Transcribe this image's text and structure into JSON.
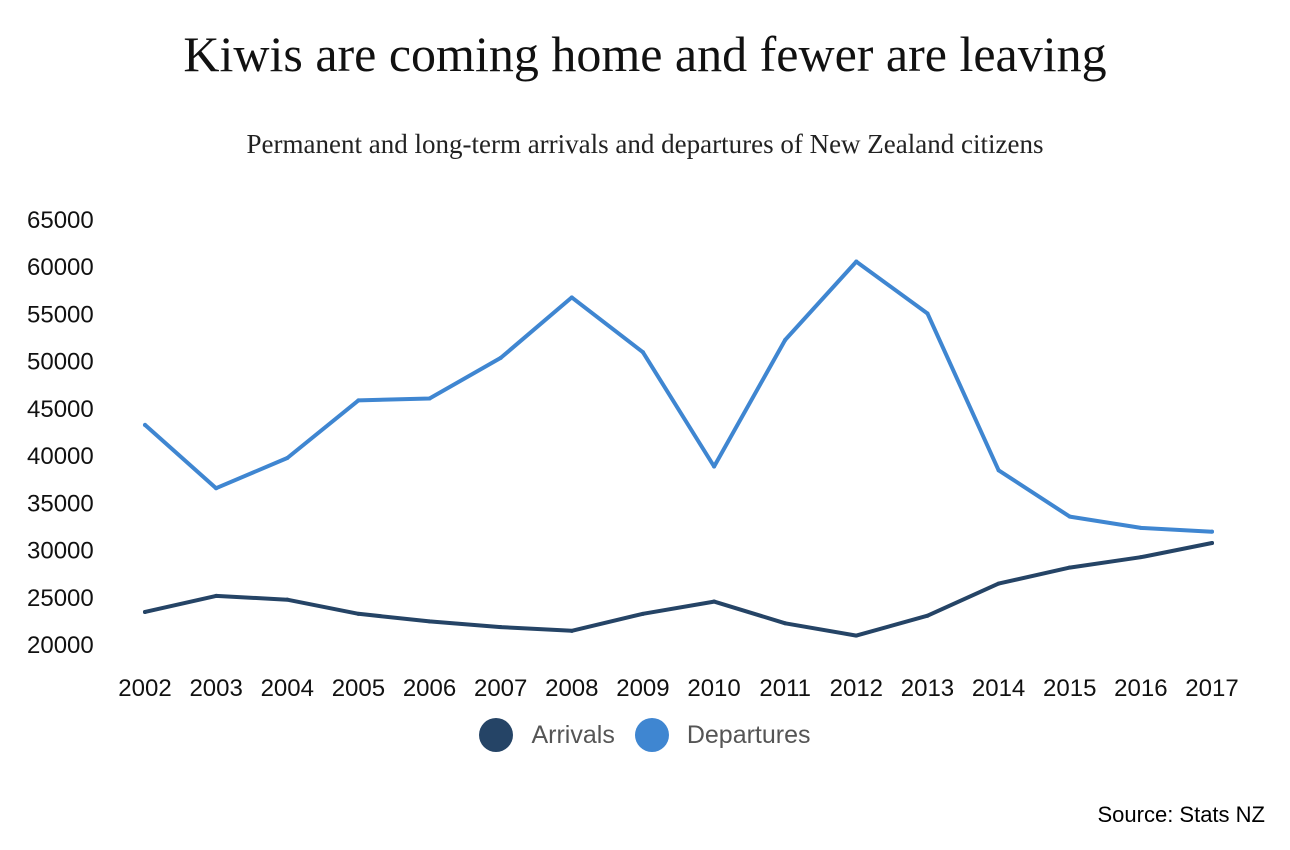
{
  "chart_data": {
    "type": "line",
    "title": "Kiwis are coming home and fewer are leaving",
    "subtitle": "Permanent and long-term arrivals and departures of New Zealand citizens",
    "categories": [
      "2002",
      "2003",
      "2004",
      "2005",
      "2006",
      "2007",
      "2008",
      "2009",
      "2010",
      "2011",
      "2012",
      "2013",
      "2014",
      "2015",
      "2016",
      "2017"
    ],
    "series": [
      {
        "name": "Arrivals",
        "color": "#254466",
        "values": [
          23500,
          25200,
          24800,
          23300,
          22500,
          21900,
          21500,
          23300,
          24600,
          22300,
          21000,
          23100,
          26500,
          28200,
          29300,
          30800
        ]
      },
      {
        "name": "Departures",
        "color": "#3f86d1",
        "values": [
          43300,
          36600,
          39800,
          45900,
          46100,
          50400,
          56800,
          51000,
          38900,
          52300,
          60600,
          55100,
          38500,
          33600,
          32400,
          32000
        ]
      }
    ],
    "yticks": [
      20000,
      25000,
      30000,
      35000,
      40000,
      45000,
      50000,
      55000,
      60000,
      65000
    ],
    "ylim": [
      20000,
      65000
    ],
    "grid": false,
    "legend_position": "bottom-center",
    "xlabel": "",
    "ylabel": ""
  },
  "source": "Source: Stats NZ"
}
